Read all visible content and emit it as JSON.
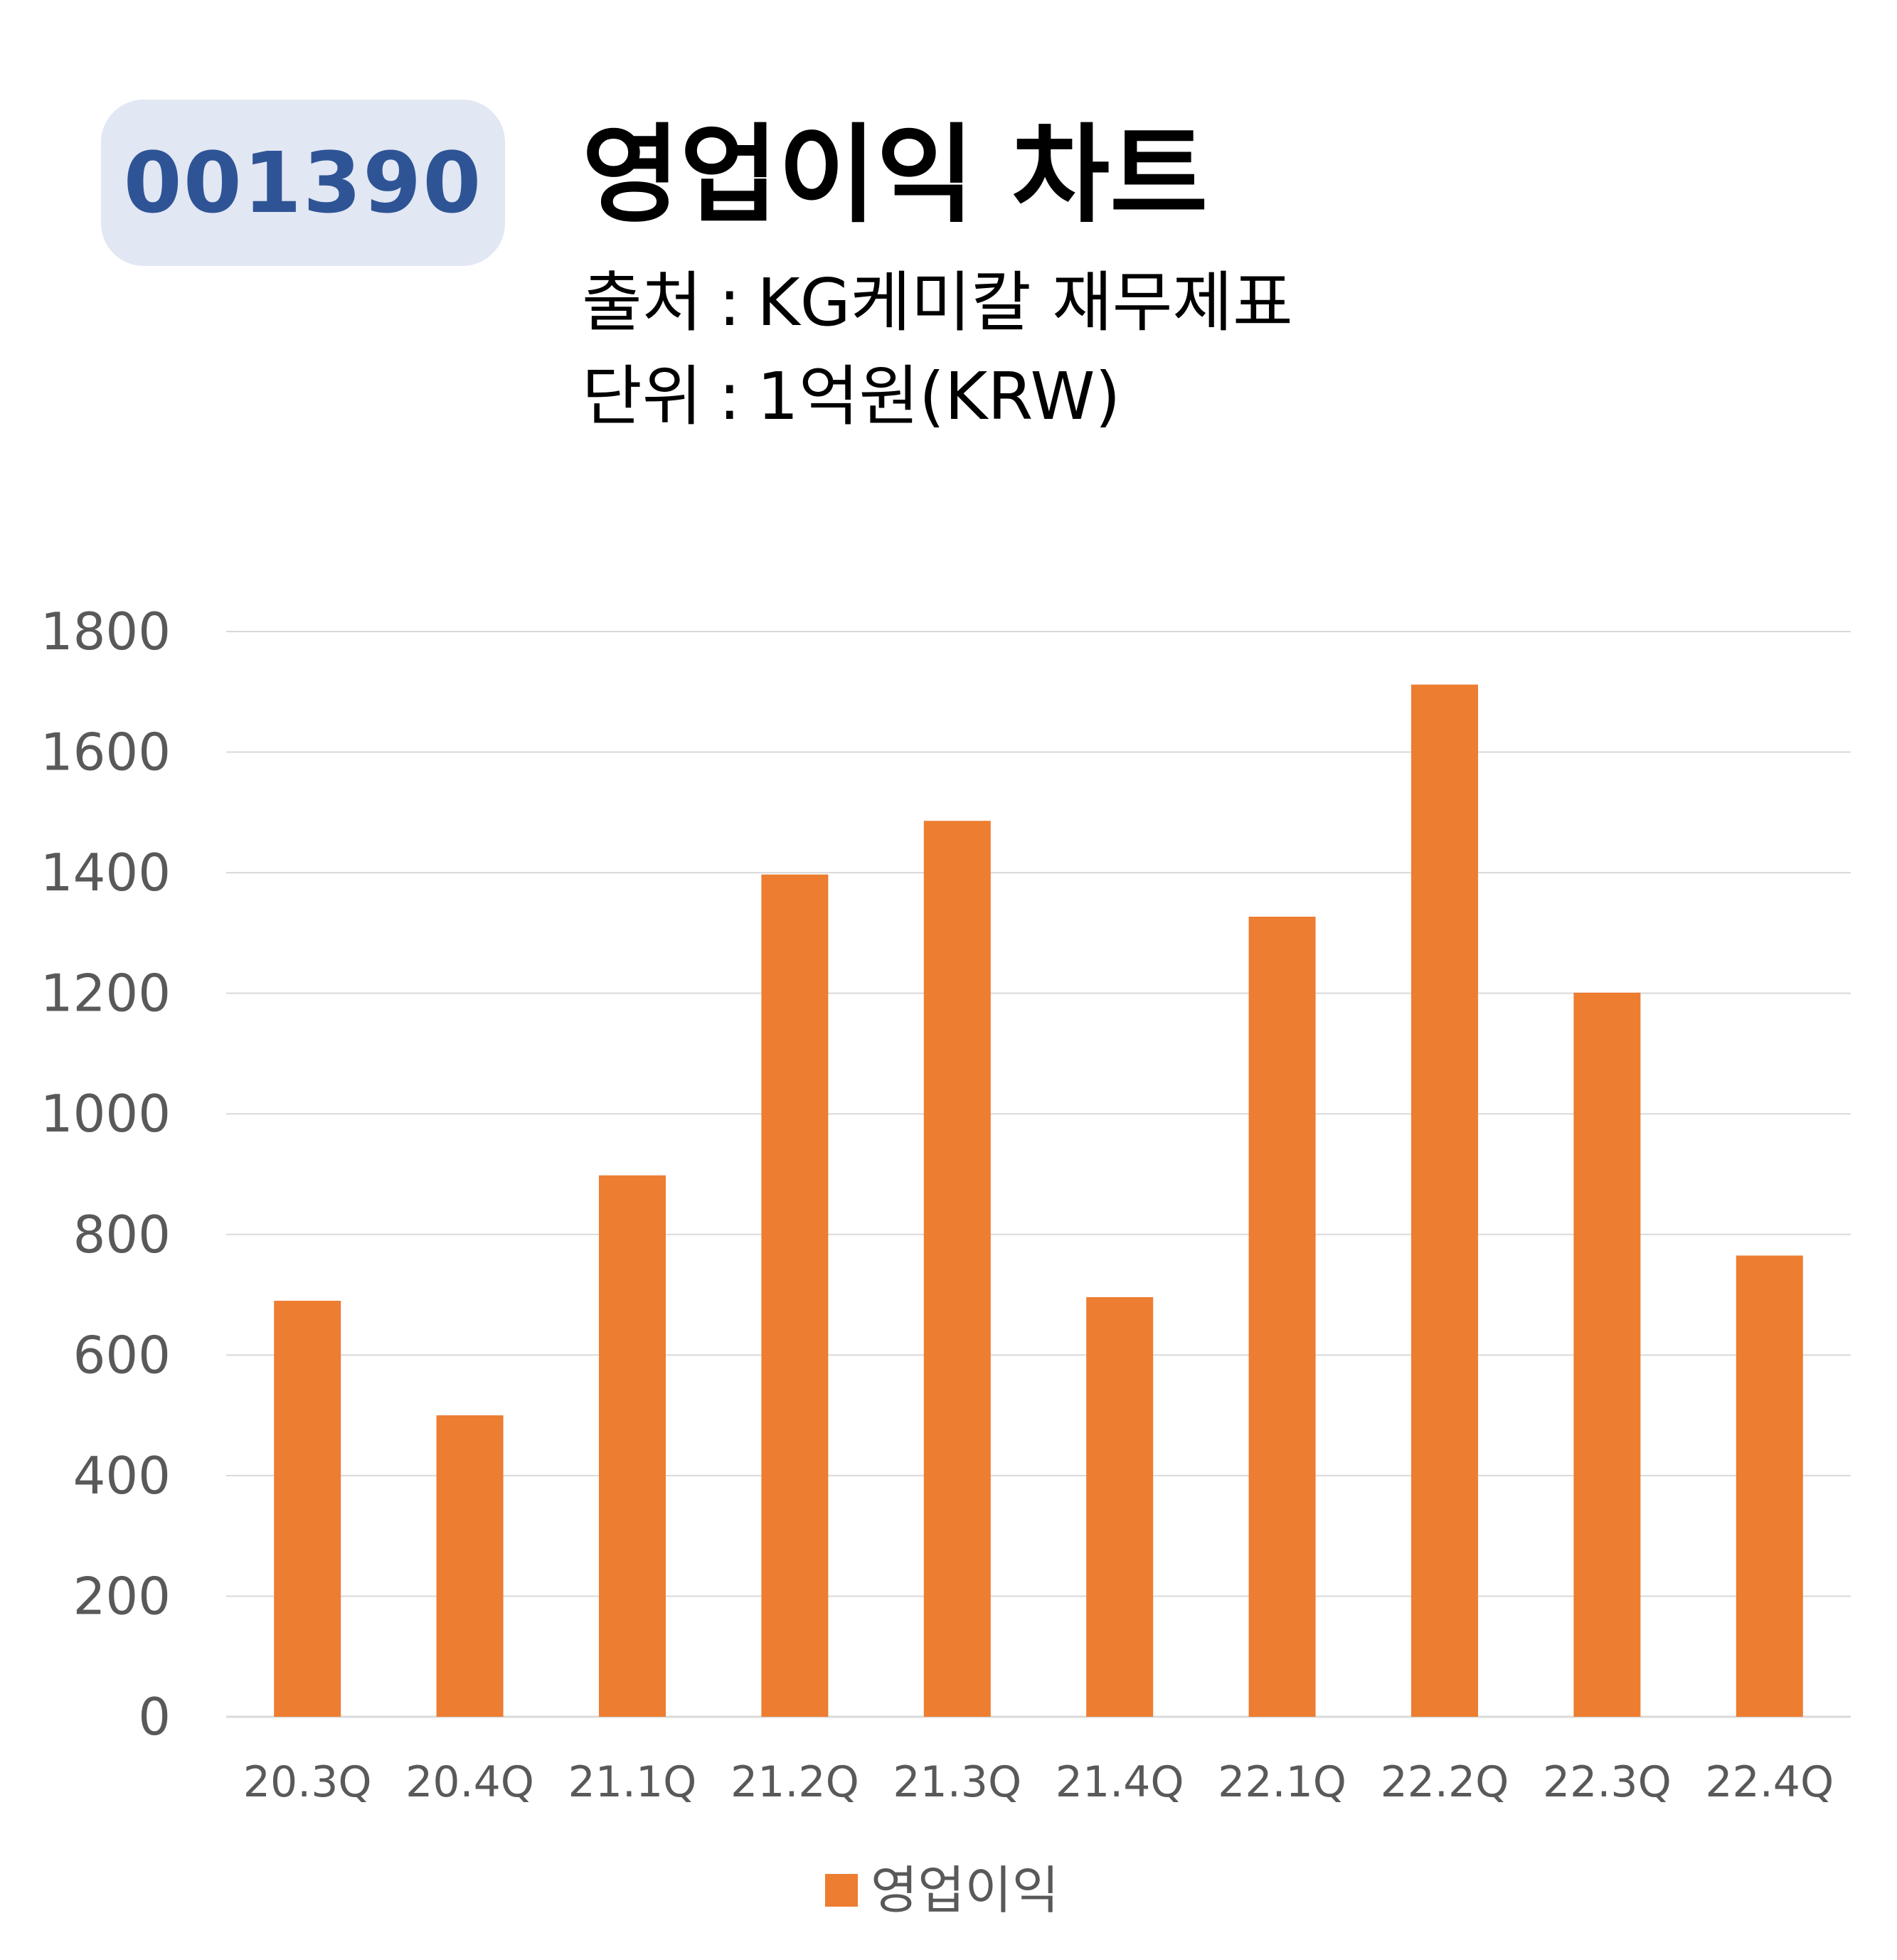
{
  "header": {
    "code": "001390",
    "title": "영업이익 차트",
    "source_label": "출처",
    "source_value": "KG케미칼 재무제표",
    "unit_label": "단위",
    "unit_value": "1억원(KRW)",
    "separator": ":"
  },
  "colors": {
    "bar": "#ed7d31",
    "grid": "#d9d9d9",
    "axis_text": "#595959",
    "badge_bg": "#e1e7f3",
    "badge_text": "#2f5496"
  },
  "chart_data": {
    "type": "bar",
    "categories": [
      "20.3Q",
      "20.4Q",
      "21.1Q",
      "21.2Q",
      "21.3Q",
      "21.4Q",
      "22.1Q",
      "22.2Q",
      "22.3Q",
      "22.4Q"
    ],
    "series": [
      {
        "name": "영업이익",
        "values": [
          690,
          500,
          898,
          1397,
          1486,
          696,
          1327,
          1712,
          1201,
          765
        ]
      }
    ],
    "yticks": [
      "0",
      "200",
      "400",
      "600",
      "800",
      "1000",
      "1200",
      "1400",
      "1600",
      "1800"
    ],
    "ylim": [
      0,
      1800
    ],
    "grid": true,
    "legend_position": "bottom"
  }
}
